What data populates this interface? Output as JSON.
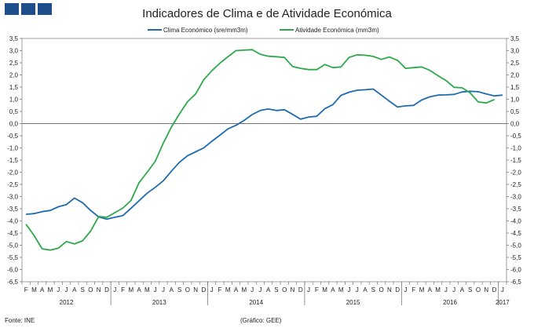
{
  "header": {
    "title": "Indicadores de Clima e de Atividade Económica",
    "logo_colors": [
      "#1f4e8c",
      "#1f4e8c",
      "#1f4e8c"
    ]
  },
  "footer": {
    "source": "Fonte: INE",
    "credit": "(Gráfico: GEE)"
  },
  "chart_data": {
    "type": "line",
    "title": "Indicadores de Clima e de Atividade Económica",
    "ylim": [
      -6.5,
      3.5
    ],
    "y_ticks": [
      "3,5",
      "3,0",
      "2,5",
      "2,0",
      "1,5",
      "1,0",
      "0,5",
      "0,0",
      "-0,5",
      "-1,0",
      "-1,5",
      "-2,0",
      "-2,5",
      "-3,0",
      "-3,5",
      "-4,0",
      "-4,5",
      "-5,0",
      "-5,5",
      "-6,0",
      "-6,5"
    ],
    "month_labels": [
      "F",
      "M",
      "A",
      "M",
      "J",
      "J",
      "A",
      "S",
      "O",
      "N",
      "D",
      "J",
      "F",
      "M",
      "A",
      "M",
      "J",
      "J",
      "A",
      "S",
      "O",
      "N",
      "D",
      "J",
      "F",
      "M",
      "A",
      "M",
      "J",
      "J",
      "A",
      "S",
      "O",
      "N",
      "D",
      "J",
      "F",
      "M",
      "A",
      "M",
      "J",
      "J",
      "A",
      "S",
      "O",
      "N",
      "D",
      "J",
      "F",
      "M",
      "A",
      "M",
      "J",
      "J",
      "A",
      "S",
      "O",
      "N",
      "D",
      "J"
    ],
    "year_labels": [
      "2012",
      "2013",
      "2014",
      "2015",
      "2016",
      "2017"
    ],
    "legend_position": "top-center",
    "series": [
      {
        "name": "Clima Económico (sre/mm3m)",
        "color": "#1f6bb0",
        "values": [
          -3.73,
          -3.7,
          -3.62,
          -3.57,
          -3.42,
          -3.33,
          -3.06,
          -3.25,
          -3.57,
          -3.84,
          -3.93,
          -3.85,
          -3.78,
          -3.48,
          -3.17,
          -2.86,
          -2.62,
          -2.35,
          -1.96,
          -1.59,
          -1.32,
          -1.16,
          -1.0,
          -0.73,
          -0.48,
          -0.22,
          -0.07,
          0.13,
          0.37,
          0.54,
          0.6,
          0.54,
          0.57,
          0.38,
          0.18,
          0.27,
          0.3,
          0.61,
          0.78,
          1.16,
          1.29,
          1.37,
          1.39,
          1.42,
          1.17,
          0.92,
          0.68,
          0.73,
          0.75,
          0.97,
          1.1,
          1.17,
          1.18,
          1.2,
          1.3,
          1.33,
          1.31,
          1.22,
          1.14,
          1.17
        ]
      },
      {
        "name": "Atividade Económica (mm3m)",
        "color": "#2ea84a",
        "values": [
          -4.14,
          -4.6,
          -5.15,
          -5.2,
          -5.12,
          -4.85,
          -4.95,
          -4.82,
          -4.42,
          -3.82,
          -3.85,
          -3.66,
          -3.47,
          -3.16,
          -2.43,
          -2.0,
          -1.55,
          -0.8,
          -0.15,
          0.4,
          0.9,
          1.22,
          1.8,
          2.17,
          2.48,
          2.75,
          3.0,
          3.02,
          3.04,
          2.85,
          2.77,
          2.75,
          2.72,
          2.35,
          2.27,
          2.22,
          2.22,
          2.43,
          2.3,
          2.33,
          2.72,
          2.83,
          2.81,
          2.76,
          2.64,
          2.74,
          2.6,
          2.27,
          2.3,
          2.33,
          2.19,
          1.97,
          1.77,
          1.49,
          1.47,
          1.26,
          0.89,
          0.85,
          0.99,
          null
        ]
      }
    ]
  }
}
